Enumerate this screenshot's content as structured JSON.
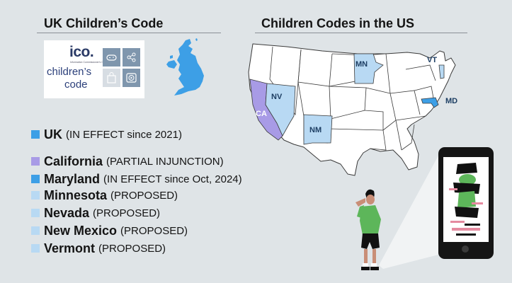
{
  "uk_section": {
    "title": "UK Children’s Code",
    "logo": {
      "brand": "ico.",
      "tagline": "Information Commissioner's Office",
      "line1": "children’s",
      "line2": "code"
    }
  },
  "us_section": {
    "title": "Children Codes in the US",
    "state_labels": {
      "nv": "NV",
      "ca": "CA",
      "nm": "NM",
      "mn": "MN",
      "vt": "VT",
      "md": "MD"
    }
  },
  "legend": [
    {
      "name": "UK",
      "status": "(IN EFFECT since 2021)",
      "color": "#3d9fe6"
    },
    {
      "name": "California",
      "status": "(PARTIAL INJUNCTION)",
      "color": "#a89be6"
    },
    {
      "name": "Maryland",
      "status": "(IN EFFECT since Oct, 2024)",
      "color": "#3d9fe6"
    },
    {
      "name": "Minnesota",
      "status": "(PROPOSED)",
      "color": "#b8d9f3"
    },
    {
      "name": "Nevada",
      "status": "(PROPOSED)",
      "color": "#b8d9f3"
    },
    {
      "name": "New Mexico",
      "status": "(PROPOSED)",
      "color": "#b8d9f3"
    },
    {
      "name": "Vermont",
      "status": "(PROPOSED)",
      "color": "#b8d9f3"
    }
  ],
  "colors": {
    "in_effect": "#3d9fe6",
    "partial_injunction": "#a89be6",
    "proposed": "#b8d9f3",
    "map_base": "#ffffff",
    "map_border": "#3a3a3a"
  },
  "icons": [
    "gamepad-icon",
    "share-icon",
    "shopping-bag-icon",
    "play-icon"
  ]
}
